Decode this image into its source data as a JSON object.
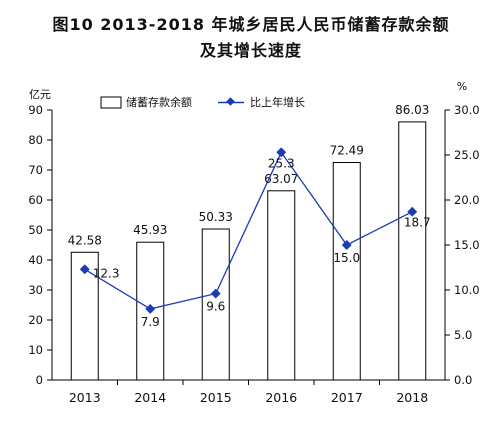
{
  "chart_data": {
    "type": "bar",
    "title_line1": "图10  2013-2018 年城乡居民人民币储蓄存款余额",
    "title_line2": "及其增长速度",
    "left_unit": "亿元",
    "right_unit": "%",
    "categories": [
      "2013",
      "2014",
      "2015",
      "2016",
      "2017",
      "2018"
    ],
    "series": [
      {
        "name": "储蓄存款余额",
        "type": "bar",
        "axis": "left",
        "values": [
          42.58,
          45.93,
          50.33,
          63.07,
          72.49,
          86.03
        ],
        "labels": [
          "42.58",
          "45.93",
          "50.33",
          "63.07",
          "72.49",
          "86.03"
        ]
      },
      {
        "name": "比上年增长",
        "type": "line",
        "axis": "right",
        "values": [
          12.3,
          7.9,
          9.6,
          25.3,
          15.0,
          18.7
        ],
        "labels": [
          "12.3",
          "7.9",
          "9.6",
          "25.3",
          "15.0",
          "18.7"
        ]
      }
    ],
    "y_left": {
      "min": 0,
      "max": 90,
      "ticks": [
        "0",
        "10",
        "20",
        "30",
        "40",
        "50",
        "60",
        "70",
        "80",
        "90"
      ]
    },
    "y_right": {
      "min": 0,
      "max": 30,
      "ticks": [
        "0.0",
        "5.0",
        "10.0",
        "15.0",
        "20.0",
        "25.0",
        "30.0"
      ]
    },
    "colors": {
      "bar_fill": "#ffffff",
      "bar_stroke": "#000000",
      "line": "#1a3cb4"
    },
    "legend_position": "top"
  }
}
